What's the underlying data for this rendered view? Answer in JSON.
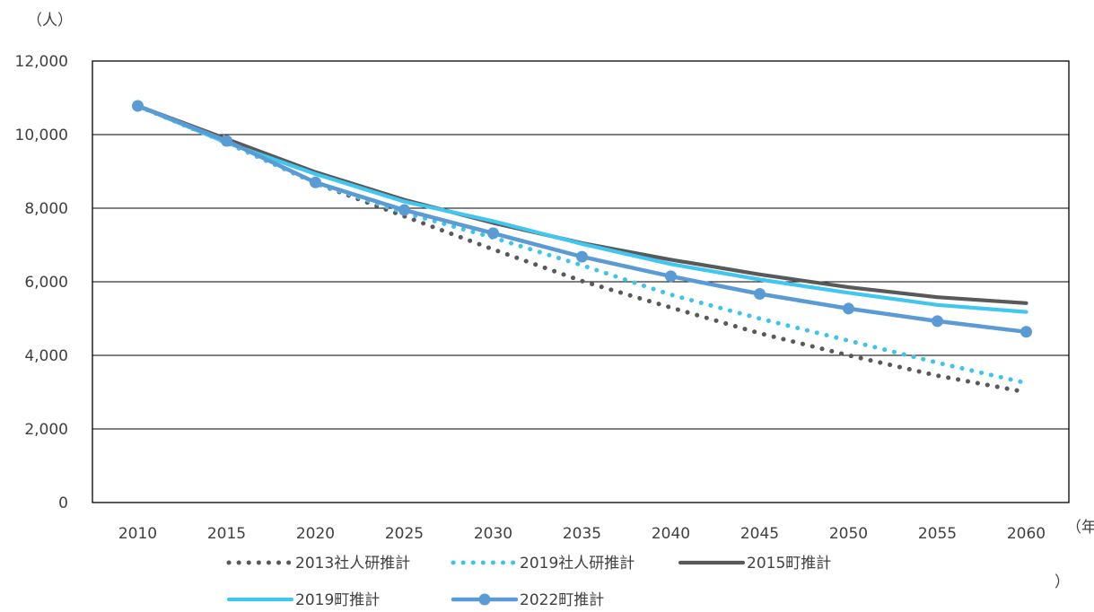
{
  "chart_data": {
    "type": "line",
    "title": "",
    "xlabel": "",
    "ylabel": "",
    "y_unit": "（人）",
    "x_unit_top": "（年",
    "x_unit_bottom": "）",
    "x": [
      2010,
      2015,
      2020,
      2025,
      2030,
      2035,
      2040,
      2045,
      2050,
      2055,
      2060
    ],
    "x_tick_labels": [
      "2010",
      "2015",
      "2020",
      "2025",
      "2030",
      "2035",
      "2040",
      "2045",
      "2050",
      "2055",
      "2060"
    ],
    "ylim": [
      0,
      12000
    ],
    "y_ticks": [
      0,
      2000,
      4000,
      6000,
      8000,
      10000,
      12000
    ],
    "y_tick_labels": [
      "0",
      "2,000",
      "4,000",
      "6,000",
      "8,000",
      "10,000",
      "12,000"
    ],
    "grid": "horizontal",
    "legend_position": "bottom",
    "series": [
      {
        "name": "2013社人研推計",
        "color": "#595959",
        "style": "dotted",
        "marker": "none",
        "values": [
          10780,
          9780,
          8680,
          7780,
          6880,
          6020,
          5300,
          4600,
          4000,
          3450,
          3000
        ]
      },
      {
        "name": "2019社人研推計",
        "color": "#3EC4EC",
        "style": "dotted",
        "marker": "none",
        "values": [
          10780,
          9780,
          8680,
          7880,
          7200,
          6450,
          5650,
          5000,
          4400,
          3800,
          3250
        ]
      },
      {
        "name": "2015町推計",
        "color": "#595959",
        "style": "solid",
        "marker": "none",
        "values": [
          10780,
          9880,
          8980,
          8230,
          7600,
          7050,
          6600,
          6200,
          5850,
          5580,
          5420
        ]
      },
      {
        "name": "2019町推計",
        "color": "#41C6F0",
        "style": "solid",
        "marker": "none",
        "values": [
          10780,
          9780,
          8930,
          8180,
          7650,
          7030,
          6480,
          6060,
          5700,
          5370,
          5180
        ]
      },
      {
        "name": "2022町推計",
        "color": "#5B9BD5",
        "style": "solid",
        "marker": "circle",
        "values": [
          10780,
          9830,
          8700,
          7950,
          7320,
          6680,
          6150,
          5670,
          5270,
          4930,
          4640
        ]
      }
    ]
  }
}
